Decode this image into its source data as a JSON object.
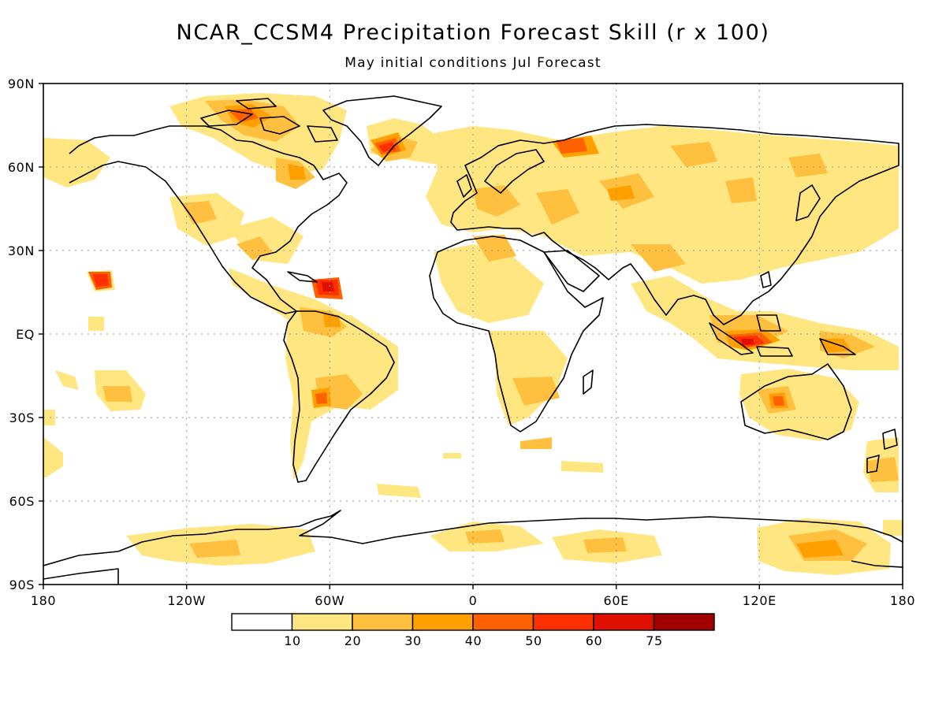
{
  "title": "NCAR_CCSM4 Precipitation Forecast Skill (r x 100)",
  "subtitle": "May initial conditions  Jul Forecast",
  "axes": {
    "y_ticks": [
      "90N",
      "60N",
      "30N",
      "EQ",
      "30S",
      "60S",
      "90S"
    ],
    "x_ticks": [
      "180",
      "120W",
      "60W",
      "0",
      "60E",
      "120E",
      "180"
    ]
  },
  "colorbar": {
    "labels": [
      "10",
      "20",
      "30",
      "40",
      "50",
      "60",
      "75"
    ],
    "colors": [
      "#ffffff",
      "#ffe680",
      "#ffc040",
      "#ffa000",
      "#ff6000",
      "#ff3000",
      "#e01000",
      "#a00000"
    ]
  },
  "colors": {
    "coast": "#000000",
    "grid": "#999999"
  }
}
